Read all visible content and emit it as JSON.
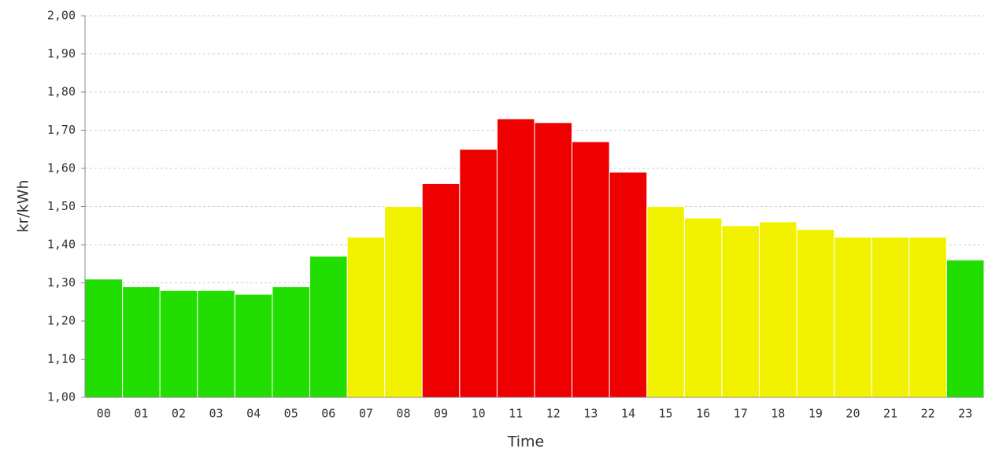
{
  "chart_data": {
    "type": "bar",
    "x_label": "Time",
    "y_label": "kr/kWh",
    "categories": [
      "00",
      "01",
      "02",
      "03",
      "04",
      "05",
      "06",
      "07",
      "08",
      "09",
      "10",
      "11",
      "12",
      "13",
      "14",
      "15",
      "16",
      "17",
      "18",
      "19",
      "20",
      "21",
      "22",
      "23"
    ],
    "values": [
      1.31,
      1.29,
      1.28,
      1.28,
      1.27,
      1.29,
      1.37,
      1.42,
      1.5,
      1.56,
      1.65,
      1.73,
      1.72,
      1.67,
      1.59,
      1.5,
      1.47,
      1.45,
      1.46,
      1.44,
      1.42,
      1.42,
      1.42,
      1.36
    ],
    "colors": [
      "#22dd00",
      "#22dd00",
      "#22dd00",
      "#22dd00",
      "#22dd00",
      "#22dd00",
      "#22dd00",
      "#f2f200",
      "#f2f200",
      "#ee0000",
      "#ee0000",
      "#ee0000",
      "#ee0000",
      "#ee0000",
      "#ee0000",
      "#f2f200",
      "#f2f200",
      "#f2f200",
      "#f2f200",
      "#f2f200",
      "#f2f200",
      "#f2f200",
      "#f2f200",
      "#22dd00"
    ],
    "ylim": [
      1.0,
      2.0
    ],
    "yticks": [
      {
        "value": 1.0,
        "label": "1,00"
      },
      {
        "value": 1.1,
        "label": "1,10"
      },
      {
        "value": 1.2,
        "label": "1,20"
      },
      {
        "value": 1.3,
        "label": "1,30"
      },
      {
        "value": 1.4,
        "label": "1,40"
      },
      {
        "value": 1.5,
        "label": "1,50"
      },
      {
        "value": 1.6,
        "label": "1,60"
      },
      {
        "value": 1.7,
        "label": "1,70"
      },
      {
        "value": 1.8,
        "label": "1,80"
      },
      {
        "value": 1.9,
        "label": "1,90"
      },
      {
        "value": 2.0,
        "label": "2,00"
      }
    ],
    "grid": true
  }
}
